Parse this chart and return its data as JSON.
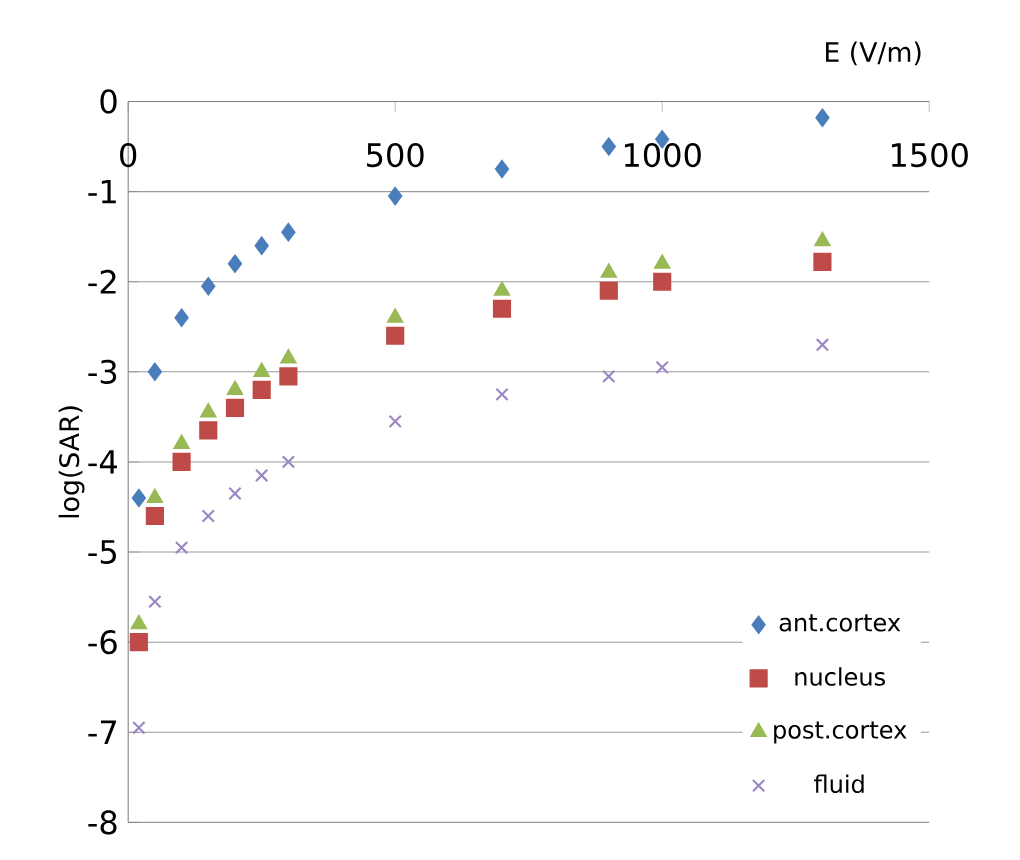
{
  "chart_data": {
    "type": "scatter",
    "xlabel": "E (V/m)",
    "ylabel": "log(SAR)",
    "x": [
      20,
      50,
      100,
      150,
      200,
      250,
      300,
      500,
      700,
      900,
      1000,
      1300
    ],
    "series": [
      {
        "name": "ant.cortex",
        "color": "#4a7ebb",
        "marker": "diamond",
        "values": [
          -4.4,
          -3.0,
          -2.4,
          -2.05,
          -1.8,
          -1.6,
          -1.45,
          -1.05,
          -0.75,
          -0.5,
          -0.42,
          -0.18
        ]
      },
      {
        "name": "nucleus",
        "color": "#be4b48",
        "marker": "square",
        "values": [
          -6.0,
          -4.6,
          -4.0,
          -3.65,
          -3.4,
          -3.2,
          -3.05,
          -2.6,
          -2.3,
          -2.1,
          -2.0,
          -1.78
        ]
      },
      {
        "name": "post.cortex",
        "color": "#98b954",
        "marker": "triangle",
        "values": [
          -5.8,
          -4.4,
          -3.8,
          -3.45,
          -3.2,
          -3.0,
          -2.85,
          -2.4,
          -2.1,
          -1.9,
          -1.8,
          -1.55
        ]
      },
      {
        "name": "fluid",
        "color": "#9b87c4",
        "marker": "cross",
        "values": [
          -6.95,
          -5.55,
          -4.95,
          -4.6,
          -4.35,
          -4.15,
          -4.0,
          -3.55,
          -3.25,
          -3.05,
          -2.95,
          -2.7
        ]
      }
    ],
    "xlim": [
      0,
      1500
    ],
    "xticks": [
      0,
      500,
      1000,
      1500
    ],
    "ylim": [
      -8,
      0
    ],
    "yticks": [
      0,
      -1,
      -2,
      -3,
      -4,
      -5,
      -6,
      -7,
      -8
    ],
    "grid": "y",
    "legend": "bottom right"
  }
}
